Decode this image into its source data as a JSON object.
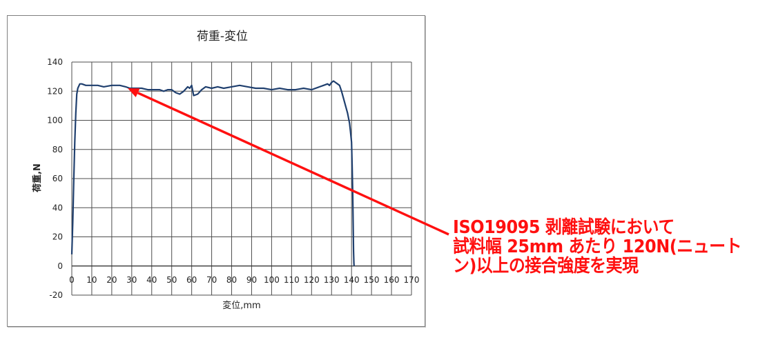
{
  "chart_data": {
    "type": "line",
    "title": "荷重-変位",
    "xlabel": "変位,mm",
    "ylabel": "荷重,N",
    "xlim": [
      0,
      170
    ],
    "ylim": [
      -20,
      140
    ],
    "xticks": [
      0,
      10,
      20,
      30,
      40,
      50,
      60,
      70,
      80,
      90,
      100,
      110,
      120,
      130,
      140,
      150,
      160,
      170
    ],
    "yticks": [
      -20,
      0,
      20,
      40,
      60,
      80,
      100,
      120,
      140
    ],
    "grid": true,
    "line_color": "#1f3f6e",
    "series": [
      {
        "x": [
          0,
          0.5,
          1,
          1.5,
          2,
          2.5,
          3,
          4,
          5,
          7,
          10,
          13,
          16,
          20,
          24,
          27,
          29,
          32,
          35,
          38,
          41,
          44,
          46,
          48,
          50,
          52,
          54,
          56,
          58,
          59,
          60,
          61,
          63,
          65,
          67,
          70,
          73,
          76,
          80,
          84,
          88,
          92,
          96,
          100,
          104,
          108,
          112,
          116,
          120,
          124,
          126,
          128,
          129,
          130,
          131,
          132,
          133,
          134,
          135,
          136,
          137,
          138,
          139,
          139.5,
          140,
          140.3,
          140.6,
          140.8,
          141,
          141.2,
          141.3
        ],
        "y": [
          8,
          30,
          60,
          85,
          105,
          118,
          122,
          125,
          125,
          124,
          124,
          124,
          123,
          124,
          124,
          123,
          122,
          122,
          122,
          121,
          121,
          121,
          120,
          121,
          121,
          119,
          118,
          120,
          123,
          122,
          124,
          117,
          118,
          121,
          123,
          122,
          123,
          122,
          123,
          124,
          123,
          122,
          122,
          121,
          122,
          121,
          121,
          122,
          121,
          123,
          124,
          125,
          124,
          126,
          127,
          126,
          125,
          124,
          120,
          115,
          110,
          105,
          98,
          92,
          85,
          70,
          50,
          30,
          10,
          2,
          0
        ]
      }
    ],
    "annotation": {
      "lines": [
        "ISO19095 剥離試験において",
        "試料幅 25mm あたり 120N(ニュート",
        "ン)以上の接合強度を実現"
      ],
      "color": "#ff1010",
      "arrow_target": [
        28,
        122
      ]
    }
  }
}
